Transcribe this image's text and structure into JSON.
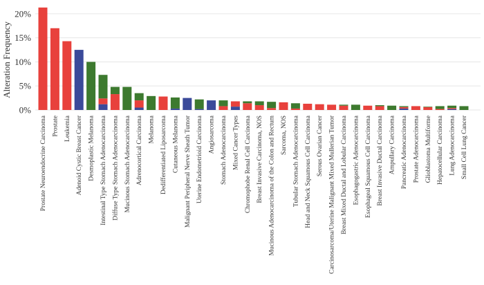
{
  "chart_data": {
    "type": "bar",
    "stacked": true,
    "ylabel": "Alteration Frequency",
    "xlabel": "",
    "ylim": [
      0,
      22
    ],
    "yticks": [
      0,
      5,
      10,
      15,
      20
    ],
    "ytick_labels": [
      "0%",
      "5%",
      "10%",
      "15%",
      "20%"
    ],
    "grid": true,
    "legend": "none",
    "colors": {
      "red": "#e8413c",
      "blue": "#3b4a9a",
      "green": "#3d7a2f"
    },
    "categories": [
      "Prostate Neuroendocrine Carcinoma",
      "Prostate",
      "Leukemia",
      "Adenoid Cystic Breast Cancer",
      "Desmoplastic Melanoma",
      "Intestinal Type Stomach Adenocarcinoma",
      "Diffuse Type Stomach Adenocarcinoma",
      "Mucinous Stomach Adenocarcinoma",
      "Adrenocortical Carcinoma",
      "Melanoma",
      "Dedifferentiated Liposarcoma",
      "Cutaneous Melanoma",
      "Malignant Peripheral Nerve Sheath Tumor",
      "Uterine Endometrioid Carcinoma",
      "Angiosarcoma",
      "Stomach Adenocarcinoma",
      "Mixed Cancer Types",
      "Chromophobe Renal Cell Carcinoma",
      "Breast Invasive Carcinoma, NOS",
      "Mucinous Adenocarcinoma of the Colon and Rectum",
      "Sarcoma, NOS",
      "Tubular Stomach Adenocarcinoma",
      "Head and Neck Squamous Cell Carcinoma",
      "Serous Ovarian Cancer",
      "Carcinosarcoma/Uterine Malignant Mixed Mullerian Tumor",
      "Breast Mixed Ductal and Lobular Carcinoma",
      "Esophagogastric Adenocarcinoma",
      "Esophageal Squamous Cell Carcinoma",
      "Breast Invasive Ductal Carcinoma",
      "Ampullary Carcinoma",
      "Pancreatic Adenocarcinoma",
      "Prostate Adenocarcinoma",
      "Glioblastoma Multiforme",
      "Hepatocellular Carcinoma",
      "Lung Adenocarcinoma",
      "Small Cell Lung Cancer"
    ],
    "series": [
      {
        "color": "#3b4a9a",
        "values": [
          0,
          0,
          0,
          12.5,
          0,
          1.2,
          0,
          0,
          0.5,
          0,
          0,
          0.3,
          2.5,
          0.2,
          2.0,
          0,
          0.7,
          0,
          0,
          0,
          0,
          0,
          0,
          0,
          0,
          0,
          0,
          0,
          0,
          0,
          0.3,
          0,
          0,
          0,
          0.2,
          0
        ]
      },
      {
        "color": "#e8413c",
        "values": [
          21.3,
          17.0,
          14.3,
          0,
          0,
          1.2,
          3.3,
          0,
          1.5,
          0,
          2.8,
          0,
          0,
          0,
          0,
          0.8,
          1.1,
          1.4,
          1.0,
          0.4,
          1.6,
          0.3,
          1.3,
          1.2,
          1.1,
          0.9,
          0,
          0.9,
          0.8,
          0,
          0.3,
          0.8,
          0.6,
          0.2,
          0.2,
          0
        ]
      },
      {
        "color": "#3d7a2f",
        "values": [
          0,
          0,
          0,
          0,
          10.0,
          4.9,
          1.5,
          4.8,
          1.5,
          2.9,
          0,
          2.3,
          0,
          2.0,
          0,
          1.2,
          0,
          0.4,
          0.8,
          1.3,
          0,
          1.1,
          0,
          0,
          0,
          0.2,
          1.1,
          0,
          0.2,
          0.9,
          0.2,
          0,
          0.1,
          0.6,
          0.5,
          0.8
        ]
      }
    ]
  }
}
